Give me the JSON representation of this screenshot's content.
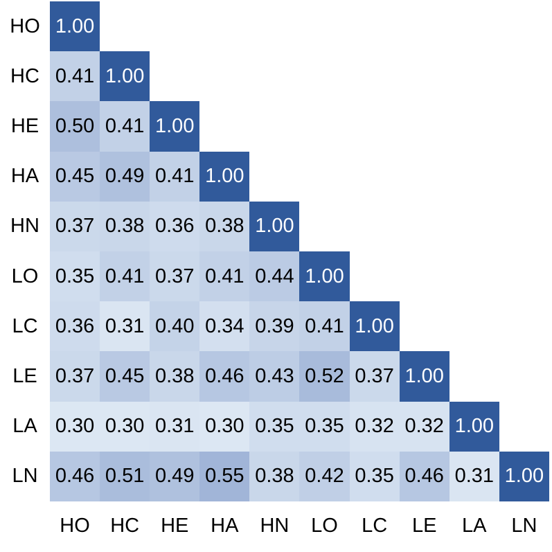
{
  "chart_data": {
    "type": "heatmap",
    "title": "",
    "subtitle": "",
    "shape": "lower-triangle-correlation-matrix",
    "categories": [
      "HO",
      "HC",
      "HE",
      "HA",
      "HN",
      "LO",
      "LC",
      "LE",
      "LA",
      "LN"
    ],
    "row_labels": [
      "HO",
      "HC",
      "HE",
      "HA",
      "HN",
      "LO",
      "LC",
      "LE",
      "LA",
      "LN"
    ],
    "column_labels": [
      "HO",
      "HC",
      "HE",
      "HA",
      "HN",
      "LO",
      "LC",
      "LE",
      "LA",
      "LN"
    ],
    "matrix": [
      [
        1.0
      ],
      [
        0.41,
        1.0
      ],
      [
        0.5,
        0.41,
        1.0
      ],
      [
        0.45,
        0.49,
        0.41,
        1.0
      ],
      [
        0.37,
        0.38,
        0.36,
        0.38,
        1.0
      ],
      [
        0.35,
        0.41,
        0.37,
        0.41,
        0.44,
        1.0
      ],
      [
        0.36,
        0.31,
        0.4,
        0.34,
        0.39,
        0.41,
        1.0
      ],
      [
        0.37,
        0.45,
        0.38,
        0.46,
        0.43,
        0.52,
        0.37,
        1.0
      ],
      [
        0.3,
        0.3,
        0.31,
        0.3,
        0.35,
        0.35,
        0.32,
        0.32,
        1.0
      ],
      [
        0.46,
        0.51,
        0.49,
        0.55,
        0.38,
        0.42,
        0.35,
        0.46,
        0.31,
        1.0
      ]
    ],
    "value_decimals": 2,
    "legend": "none",
    "grid_lines": "off",
    "colors": {
      "background": "#FFFFFF",
      "diagonal_cell": "#315A9B",
      "scale_low_color": "#DCE7F3",
      "scale_high_color": "#A1B5D8",
      "scale_low_value": 0.3,
      "scale_high_value": 0.55,
      "cell_text_dark": "#000000",
      "cell_text_light": "#FFFFFF",
      "label_color": "#000000"
    }
  }
}
